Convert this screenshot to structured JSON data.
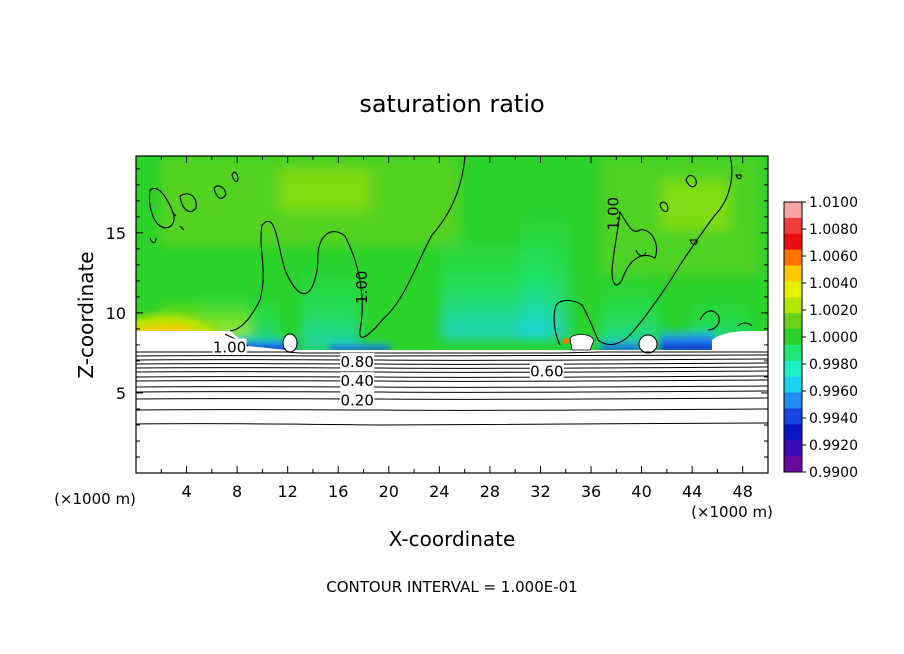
{
  "chart_data": {
    "type": "heatmap",
    "title": "saturation ratio",
    "xlabel": "X-coordinate",
    "ylabel": "Z-coordinate",
    "x_unit": "(×1000 m)",
    "z_unit": "(×1000 m)",
    "xlim": [
      0,
      50
    ],
    "ylim": [
      0,
      19.8
    ],
    "x_ticks": [
      "4",
      "8",
      "12",
      "16",
      "20",
      "24",
      "28",
      "32",
      "36",
      "40",
      "44",
      "48"
    ],
    "y_ticks": [
      "5",
      "10",
      "15"
    ],
    "colorbar": {
      "labels": [
        "1.0100",
        "1.0080",
        "1.0060",
        "1.0040",
        "1.0020",
        "1.0000",
        "0.9980",
        "0.9960",
        "0.9940",
        "0.9920",
        "0.9900"
      ],
      "colors": [
        "#f6a3a3",
        "#f03c3c",
        "#e80e0e",
        "#ff7400",
        "#ffc800",
        "#e6f000",
        "#b4e600",
        "#66d21e",
        "#2ad22a",
        "#1ee678",
        "#1ef0c8",
        "#19d2f0",
        "#1e8cf0",
        "#1446e6",
        "#0a14c8",
        "#3c0ab4",
        "#6a0aa0"
      ],
      "levels": [
        1.01,
        1.009,
        1.008,
        1.007,
        1.006,
        1.005,
        1.004,
        1.003,
        1.002,
        1.001,
        1.0,
        0.999,
        0.998,
        0.997,
        0.996,
        0.995,
        0.994,
        0.993,
        0.992,
        0.991,
        0.99
      ]
    },
    "contour_labels": [
      {
        "text": "1.00",
        "x": 17.8,
        "z": 11.6,
        "rot": -90
      },
      {
        "text": "1.00",
        "x": 37.7,
        "z": 16.2,
        "rot": -90
      },
      {
        "text": "1.00",
        "x": 7.4,
        "z": 7.9,
        "rot": 0
      },
      {
        "text": "0.80",
        "x": 17.5,
        "z": 7.0,
        "rot": 0
      },
      {
        "text": "0.60",
        "x": 32.5,
        "z": 6.4,
        "rot": 0
      },
      {
        "text": "0.40",
        "x": 17.5,
        "z": 5.8,
        "rot": 0
      },
      {
        "text": "0.20",
        "x": 17.5,
        "z": 4.6,
        "rot": 0
      }
    ],
    "footer": "CONTOUR INTERVAL = 1.000E-01"
  }
}
